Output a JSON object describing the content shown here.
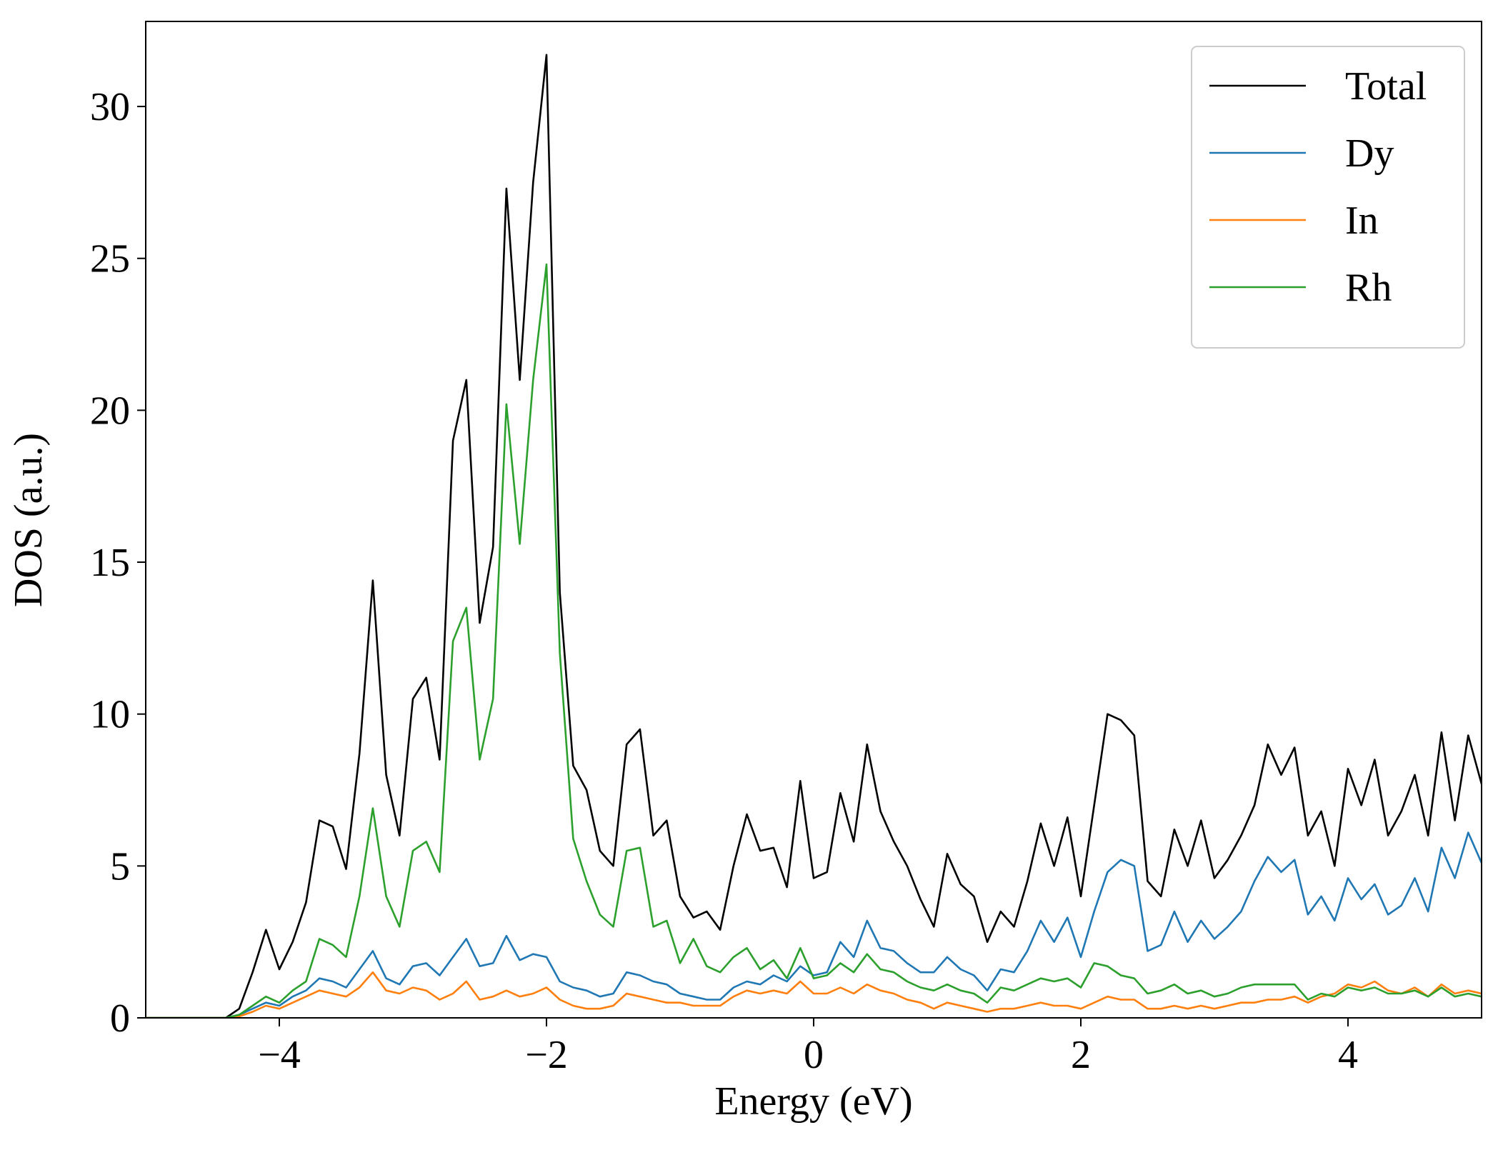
{
  "chart_data": {
    "type": "line",
    "xlabel": "Energy (eV)",
    "ylabel": "DOS (a.u.)",
    "x": [
      -5.0,
      -4.9,
      -4.8,
      -4.7,
      -4.6,
      -4.5,
      -4.4,
      -4.3,
      -4.2,
      -4.1,
      -4.0,
      -3.9,
      -3.8,
      -3.7,
      -3.6,
      -3.5,
      -3.4,
      -3.3,
      -3.2,
      -3.1,
      -3.0,
      -2.9,
      -2.8,
      -2.7,
      -2.6,
      -2.5,
      -2.4,
      -2.3,
      -2.2,
      -2.1,
      -2.0,
      -1.9,
      -1.8,
      -1.7,
      -1.6,
      -1.5,
      -1.4,
      -1.3,
      -1.2,
      -1.1,
      -1.0,
      -0.9,
      -0.8,
      -0.7,
      -0.6,
      -0.5,
      -0.4,
      -0.3,
      -0.2,
      -0.1,
      0.0,
      0.1,
      0.2,
      0.3,
      0.4,
      0.5,
      0.6,
      0.7,
      0.8,
      0.9,
      1.0,
      1.1,
      1.2,
      1.3,
      1.4,
      1.5,
      1.6,
      1.7,
      1.8,
      1.9,
      2.0,
      2.1,
      2.2,
      2.3,
      2.4,
      2.5,
      2.6,
      2.7,
      2.8,
      2.9,
      3.0,
      3.1,
      3.2,
      3.3,
      3.4,
      3.5,
      3.6,
      3.7,
      3.8,
      3.9,
      4.0,
      4.1,
      4.2,
      4.3,
      4.4,
      4.5,
      4.6,
      4.7,
      4.8,
      4.9,
      5.0
    ],
    "series": [
      {
        "name": "Total",
        "color": "#000000",
        "values": [
          0,
          0,
          0,
          0,
          0,
          0,
          0,
          0.3,
          1.5,
          2.9,
          1.6,
          2.5,
          3.8,
          6.5,
          6.3,
          4.9,
          8.7,
          14.4,
          8.0,
          6.0,
          10.5,
          11.2,
          8.5,
          19.0,
          21.0,
          13.0,
          15.5,
          27.3,
          21.0,
          27.5,
          31.7,
          14.0,
          8.3,
          7.5,
          5.5,
          5.0,
          9.0,
          9.5,
          6.0,
          6.5,
          4.0,
          3.3,
          3.5,
          2.9,
          5.0,
          6.7,
          5.5,
          5.6,
          4.3,
          7.8,
          4.6,
          4.8,
          7.4,
          5.8,
          9.0,
          6.8,
          5.8,
          5.0,
          3.9,
          3.0,
          5.4,
          4.4,
          4.0,
          2.5,
          3.5,
          3.0,
          4.5,
          6.4,
          5.0,
          6.6,
          4.0,
          7.0,
          10.0,
          9.8,
          9.3,
          4.5,
          4.0,
          6.2,
          5.0,
          6.5,
          4.6,
          5.2,
          6.0,
          7.0,
          9.0,
          8.0,
          8.9,
          6.0,
          6.8,
          5.0,
          8.2,
          7.0,
          8.5,
          6.0,
          6.8,
          8.0,
          6.0,
          9.4,
          6.5,
          9.3,
          7.7
        ]
      },
      {
        "name": "Dy",
        "color": "#1f77b4",
        "values": [
          0,
          0,
          0,
          0,
          0,
          0,
          0,
          0.1,
          0.3,
          0.5,
          0.4,
          0.7,
          0.9,
          1.3,
          1.2,
          1.0,
          1.6,
          2.2,
          1.3,
          1.1,
          1.7,
          1.8,
          1.4,
          2.0,
          2.6,
          1.7,
          1.8,
          2.7,
          1.9,
          2.1,
          2.0,
          1.2,
          1.0,
          0.9,
          0.7,
          0.8,
          1.5,
          1.4,
          1.2,
          1.1,
          0.8,
          0.7,
          0.6,
          0.6,
          1.0,
          1.2,
          1.1,
          1.4,
          1.2,
          1.7,
          1.4,
          1.5,
          2.5,
          2.0,
          3.2,
          2.3,
          2.2,
          1.8,
          1.5,
          1.5,
          2.0,
          1.6,
          1.4,
          0.9,
          1.6,
          1.5,
          2.2,
          3.2,
          2.5,
          3.3,
          2.0,
          3.5,
          4.8,
          5.2,
          5.0,
          2.2,
          2.4,
          3.5,
          2.5,
          3.2,
          2.6,
          3.0,
          3.5,
          4.5,
          5.3,
          4.8,
          5.2,
          3.4,
          4.0,
          3.2,
          4.6,
          3.9,
          4.4,
          3.4,
          3.7,
          4.6,
          3.5,
          5.6,
          4.6,
          6.1,
          5.1
        ]
      },
      {
        "name": "In",
        "color": "#ff7f0e",
        "values": [
          0,
          0,
          0,
          0,
          0,
          0,
          0,
          0.05,
          0.2,
          0.4,
          0.3,
          0.5,
          0.7,
          0.9,
          0.8,
          0.7,
          1.0,
          1.5,
          0.9,
          0.8,
          1.0,
          0.9,
          0.6,
          0.8,
          1.2,
          0.6,
          0.7,
          0.9,
          0.7,
          0.8,
          1.0,
          0.6,
          0.4,
          0.3,
          0.3,
          0.4,
          0.8,
          0.7,
          0.6,
          0.5,
          0.5,
          0.4,
          0.4,
          0.4,
          0.7,
          0.9,
          0.8,
          0.9,
          0.8,
          1.2,
          0.8,
          0.8,
          1.0,
          0.8,
          1.1,
          0.9,
          0.8,
          0.6,
          0.5,
          0.3,
          0.5,
          0.4,
          0.3,
          0.2,
          0.3,
          0.3,
          0.4,
          0.5,
          0.4,
          0.4,
          0.3,
          0.5,
          0.7,
          0.6,
          0.6,
          0.3,
          0.3,
          0.4,
          0.3,
          0.4,
          0.3,
          0.4,
          0.5,
          0.5,
          0.6,
          0.6,
          0.7,
          0.5,
          0.7,
          0.8,
          1.1,
          1.0,
          1.2,
          0.9,
          0.8,
          1.0,
          0.7,
          1.1,
          0.8,
          0.9,
          0.8
        ]
      },
      {
        "name": "Rh",
        "color": "#2ca02c",
        "values": [
          0,
          0,
          0,
          0,
          0,
          0,
          0,
          0.1,
          0.4,
          0.7,
          0.5,
          0.9,
          1.2,
          2.6,
          2.4,
          2.0,
          4.0,
          6.9,
          4.0,
          3.0,
          5.5,
          5.8,
          4.8,
          12.4,
          13.5,
          8.5,
          10.5,
          20.2,
          15.6,
          21.0,
          24.8,
          12.0,
          5.9,
          4.5,
          3.4,
          3.0,
          5.5,
          5.6,
          3.0,
          3.2,
          1.8,
          2.6,
          1.7,
          1.5,
          2.0,
          2.3,
          1.6,
          1.9,
          1.3,
          2.3,
          1.3,
          1.4,
          1.8,
          1.5,
          2.1,
          1.6,
          1.5,
          1.2,
          1.0,
          0.9,
          1.1,
          0.9,
          0.8,
          0.5,
          1.0,
          0.9,
          1.1,
          1.3,
          1.2,
          1.3,
          1.0,
          1.8,
          1.7,
          1.4,
          1.3,
          0.8,
          0.9,
          1.1,
          0.8,
          0.9,
          0.7,
          0.8,
          1.0,
          1.1,
          1.1,
          1.1,
          1.1,
          0.6,
          0.8,
          0.7,
          1.0,
          0.9,
          1.0,
          0.8,
          0.8,
          0.9,
          0.7,
          1.0,
          0.7,
          0.8,
          0.7
        ]
      }
    ],
    "xlim": [
      -5,
      5
    ],
    "ylim": [
      0,
      32.8
    ],
    "xticks": [
      {
        "value": -4,
        "label": "−4"
      },
      {
        "value": -2,
        "label": "−2"
      },
      0,
      2,
      4
    ],
    "yticks": [
      0,
      5,
      10,
      15,
      20,
      25,
      30
    ],
    "legend": "upper right",
    "grid": false
  }
}
